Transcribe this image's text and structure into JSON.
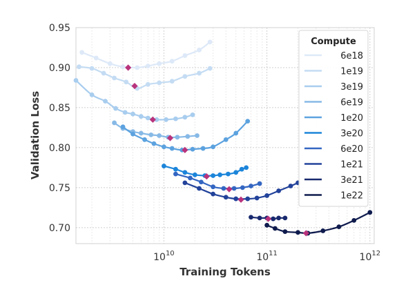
{
  "chart_data": {
    "type": "scatter",
    "xlabel": "Training Tokens",
    "ylabel": "Validation Loss",
    "x_scale": "log",
    "xlim": [
      1400000000.0,
      1100000000000.0
    ],
    "ylim": [
      0.68,
      0.95
    ],
    "y_ticks": [
      0.7,
      0.75,
      0.8,
      0.85,
      0.9,
      0.95
    ],
    "y_tick_labels": [
      "0.70",
      "0.75",
      "0.80",
      "0.85",
      "0.90",
      "0.95"
    ],
    "x_ticks": [
      10000000000.0,
      100000000000.0,
      1000000000000.0
    ],
    "x_tick_labels": [
      {
        "base": "10",
        "exp": "10"
      },
      {
        "base": "10",
        "exp": "11"
      },
      {
        "base": "10",
        "exp": "12"
      }
    ],
    "grid": true,
    "legend": {
      "title": "Compute",
      "placement": "top-right"
    },
    "optimum_color": "#b8337c",
    "series": [
      {
        "name": "6e18",
        "color": "#dde9f8",
        "points": [
          [
            1600000000.0,
            0.919
          ],
          [
            2200000000.0,
            0.912
          ],
          [
            3000000000.0,
            0.905
          ],
          [
            4000000000.0,
            0.901
          ],
          [
            5500000000.0,
            0.9
          ],
          [
            7000000000.0,
            0.902
          ],
          [
            9000000000.0,
            0.905
          ],
          [
            12000000000.0,
            0.908
          ],
          [
            16000000000.0,
            0.915
          ],
          [
            22000000000.0,
            0.922
          ],
          [
            28000000000.0,
            0.932
          ]
        ],
        "optimum": [
          4500000000.0,
          0.9
        ]
      },
      {
        "name": "1e19",
        "color": "#c4dcf3",
        "points": [
          [
            1500000000.0,
            0.901
          ],
          [
            2000000000.0,
            0.899
          ],
          [
            2600000000.0,
            0.893
          ],
          [
            3300000000.0,
            0.887
          ],
          [
            4300000000.0,
            0.882
          ],
          [
            5500000000.0,
            0.874
          ],
          [
            7000000000.0,
            0.879
          ],
          [
            9000000000.0,
            0.881
          ],
          [
            12000000000.0,
            0.883
          ],
          [
            16000000000.0,
            0.889
          ],
          [
            22000000000.0,
            0.893
          ],
          [
            28000000000.0,
            0.899
          ]
        ],
        "optimum": [
          5200000000.0,
          0.877
        ]
      },
      {
        "name": "3e19",
        "color": "#a8cdee",
        "points": [
          [
            1400000000.0,
            0.884
          ],
          [
            2000000000.0,
            0.866
          ],
          [
            2700000000.0,
            0.858
          ],
          [
            3400000000.0,
            0.849
          ],
          [
            4200000000.0,
            0.844
          ],
          [
            5000000000.0,
            0.842
          ],
          [
            6000000000.0,
            0.839
          ],
          [
            7000000000.0,
            0.837
          ],
          [
            8500000000.0,
            0.835
          ],
          [
            10500000000.0,
            0.835
          ],
          [
            13000000000.0,
            0.836
          ],
          [
            16000000000.0,
            0.838
          ],
          [
            19000000000.0,
            0.841
          ]
        ],
        "optimum": [
          7800000000.0,
          0.835
        ]
      },
      {
        "name": "6e19",
        "color": "#87b9e6",
        "points": [
          [
            3300000000.0,
            0.831
          ],
          [
            4000000000.0,
            0.824
          ],
          [
            5000000000.0,
            0.82
          ],
          [
            6000000000.0,
            0.818
          ],
          [
            7500000000.0,
            0.816
          ],
          [
            9000000000.0,
            0.815
          ],
          [
            11000000000.0,
            0.813
          ],
          [
            13500000000.0,
            0.813
          ],
          [
            17000000000.0,
            0.814
          ],
          [
            21000000000.0,
            0.815
          ]
        ],
        "optimum": [
          11500000000.0,
          0.812
        ]
      },
      {
        "name": "1e20",
        "color": "#5ca2df",
        "points": [
          [
            4000000000.0,
            0.826
          ],
          [
            5000000000.0,
            0.817
          ],
          [
            6500000000.0,
            0.81
          ],
          [
            8000000000.0,
            0.805
          ],
          [
            10000000000.0,
            0.801
          ],
          [
            12000000000.0,
            0.799
          ],
          [
            15000000000.0,
            0.797
          ],
          [
            19000000000.0,
            0.798
          ],
          [
            24000000000.0,
            0.799
          ],
          [
            30000000000.0,
            0.801
          ],
          [
            40000000000.0,
            0.81
          ],
          [
            50000000000.0,
            0.818
          ],
          [
            65000000000.0,
            0.833
          ]
        ],
        "optimum": [
          16000000000.0,
          0.797
        ]
      },
      {
        "name": "3e20",
        "color": "#1c85da",
        "points": [
          [
            10000000000.0,
            0.777
          ],
          [
            13000000000.0,
            0.773
          ],
          [
            16000000000.0,
            0.769
          ],
          [
            20000000000.0,
            0.766
          ],
          [
            25000000000.0,
            0.765
          ],
          [
            30000000000.0,
            0.765
          ],
          [
            35000000000.0,
            0.766
          ],
          [
            42000000000.0,
            0.767
          ],
          [
            50000000000.0,
            0.769
          ],
          [
            57000000000.0,
            0.773
          ],
          [
            63000000000.0,
            0.775
          ]
        ],
        "optimum": [
          26000000000.0,
          0.764
        ]
      },
      {
        "name": "6e20",
        "color": "#3366c2",
        "points": [
          [
            13000000000.0,
            0.767
          ],
          [
            18000000000.0,
            0.762
          ],
          [
            23000000000.0,
            0.757
          ],
          [
            30000000000.0,
            0.751
          ],
          [
            38000000000.0,
            0.749
          ],
          [
            48000000000.0,
            0.749
          ],
          [
            58000000000.0,
            0.75
          ],
          [
            70000000000.0,
            0.752
          ],
          [
            85000000000.0,
            0.755
          ]
        ],
        "optimum": [
          43000000000.0,
          0.748
        ]
      },
      {
        "name": "1e21",
        "color": "#22429a",
        "points": [
          [
            16000000000.0,
            0.756
          ],
          [
            22000000000.0,
            0.749
          ],
          [
            30000000000.0,
            0.742
          ],
          [
            40000000000.0,
            0.738
          ],
          [
            50000000000.0,
            0.736
          ],
          [
            65000000000.0,
            0.736
          ],
          [
            80000000000.0,
            0.737
          ],
          [
            100000000000.0,
            0.74
          ],
          [
            130000000000.0,
            0.746
          ],
          [
            170000000000.0,
            0.752
          ],
          [
            200000000000.0,
            0.756
          ]
        ],
        "optimum": [
          56000000000.0,
          0.735
        ]
      },
      {
        "name": "3e21",
        "color": "#18296e",
        "points": [
          [
            70000000000.0,
            0.713
          ],
          [
            85000000000.0,
            0.712
          ],
          [
            100000000000.0,
            0.712
          ],
          [
            115000000000.0,
            0.711
          ],
          [
            130000000000.0,
            0.712
          ],
          [
            150000000000.0,
            0.712
          ]
        ],
        "optimum": [
          103000000000.0,
          0.711
        ]
      },
      {
        "name": "1e22",
        "color": "#0f1b4d",
        "points": [
          [
            100000000000.0,
            0.703
          ],
          [
            120000000000.0,
            0.699
          ],
          [
            150000000000.0,
            0.695
          ],
          [
            200000000000.0,
            0.694
          ],
          [
            250000000000.0,
            0.693
          ],
          [
            350000000000.0,
            0.696
          ],
          [
            500000000000.0,
            0.701
          ],
          [
            700000000000.0,
            0.709
          ],
          [
            1000000000000.0,
            0.719
          ]
        ],
        "optimum": [
          240000000000.0,
          0.693
        ]
      }
    ]
  }
}
